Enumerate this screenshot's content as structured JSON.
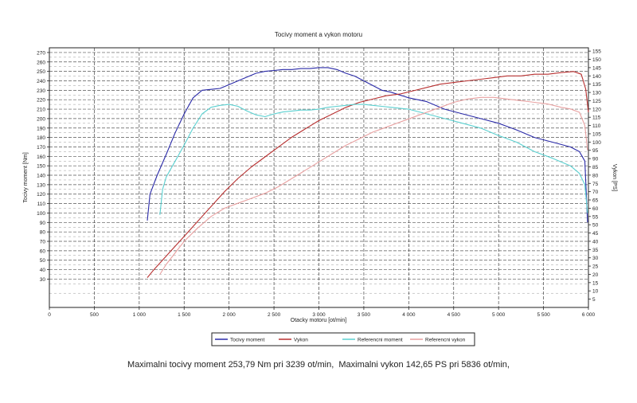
{
  "chart_data": {
    "type": "line",
    "title": "Tocivy moment a vykon motoru",
    "xlabel": "Otacky motoru [ot/min]",
    "ylabel_left": "Tocivy moment [Nm]",
    "ylabel_right": "Vykon [PS]",
    "xlim": [
      0,
      6000
    ],
    "ylim_left": [
      0,
      275
    ],
    "ylim_right": [
      0,
      157
    ],
    "x_ticks": [
      0,
      500,
      1000,
      1500,
      2000,
      2500,
      3000,
      3500,
      4000,
      4500,
      5000,
      5500,
      6000
    ],
    "x_tick_labels": [
      "0",
      "500",
      "1 000",
      "1 500",
      "2 000",
      "2 500",
      "3 000",
      "3 500",
      "4 000",
      "4 500",
      "5 000",
      "5 500",
      "6 000"
    ],
    "y_left_ticks": [
      30,
      40,
      50,
      60,
      70,
      80,
      90,
      100,
      110,
      120,
      130,
      140,
      150,
      160,
      170,
      180,
      190,
      200,
      210,
      220,
      230,
      240,
      250,
      260,
      270
    ],
    "y_right_ticks": [
      5,
      10,
      15,
      20,
      25,
      30,
      35,
      40,
      45,
      50,
      55,
      60,
      65,
      70,
      75,
      80,
      85,
      90,
      95,
      100,
      105,
      110,
      115,
      120,
      125,
      130,
      135,
      140,
      145,
      150,
      155
    ],
    "grid": true,
    "legend_position": "bottom",
    "series": [
      {
        "name": "Tocivy moment",
        "axis": "left",
        "color": "#2a2aa8",
        "x": [
          1090,
          1120,
          1200,
          1300,
          1400,
          1500,
          1600,
          1700,
          1800,
          1900,
          2000,
          2100,
          2200,
          2300,
          2400,
          2500,
          2600,
          2700,
          2800,
          2900,
          3000,
          3100,
          3200,
          3300,
          3400,
          3500,
          3600,
          3700,
          3800,
          3900,
          4000,
          4200,
          4400,
          4600,
          4800,
          5000,
          5200,
          5400,
          5600,
          5800,
          5900,
          5960,
          5990
        ],
        "y": [
          92,
          120,
          140,
          162,
          185,
          205,
          222,
          230,
          231,
          232,
          236,
          240,
          244,
          248,
          250,
          251,
          252,
          252,
          253,
          253,
          254,
          254,
          252,
          248,
          245,
          240,
          235,
          230,
          228,
          225,
          222,
          218,
          210,
          205,
          200,
          195,
          188,
          180,
          175,
          170,
          165,
          155,
          90
        ]
      },
      {
        "name": "Vykon",
        "axis": "right",
        "color": "#b83030",
        "x": [
          1090,
          1150,
          1250,
          1350,
          1500,
          1650,
          1800,
          1950,
          2100,
          2250,
          2400,
          2550,
          2700,
          2850,
          3000,
          3150,
          3300,
          3450,
          3600,
          3750,
          3900,
          4050,
          4200,
          4350,
          4500,
          4650,
          4800,
          4950,
          5100,
          5250,
          5400,
          5550,
          5700,
          5836,
          5920,
          5970,
          6000
        ],
        "y": [
          18,
          22,
          28,
          34,
          43,
          52,
          61,
          70,
          78,
          85,
          91,
          97,
          103,
          108,
          113,
          117,
          121,
          124,
          126,
          128,
          129,
          131,
          133,
          135,
          136,
          137,
          138,
          139,
          140,
          140,
          141,
          141,
          142,
          142.65,
          141,
          132,
          118
        ]
      },
      {
        "name": "Referencni moment",
        "axis": "left",
        "color": "#5ad0d0",
        "x": [
          1230,
          1260,
          1300,
          1400,
          1500,
          1600,
          1700,
          1800,
          1900,
          2000,
          2100,
          2200,
          2300,
          2400,
          2500,
          2600,
          2700,
          2800,
          2900,
          3000,
          3100,
          3200,
          3300,
          3400,
          3500,
          3600,
          3700,
          3800,
          3900,
          4000,
          4200,
          4400,
          4600,
          4800,
          5000,
          5200,
          5400,
          5600,
          5800,
          5900,
          5960,
          5990
        ],
        "y": [
          98,
          125,
          138,
          155,
          172,
          190,
          205,
          212,
          214,
          215,
          213,
          208,
          204,
          202,
          205,
          207,
          208,
          209,
          209,
          210,
          212,
          213,
          214,
          215,
          215,
          214,
          213,
          212,
          211,
          210,
          205,
          200,
          195,
          190,
          182,
          175,
          165,
          158,
          150,
          142,
          130,
          100
        ]
      },
      {
        "name": "Referencni vykon",
        "axis": "right",
        "color": "#e8a0a0",
        "x": [
          1230,
          1300,
          1400,
          1500,
          1650,
          1800,
          1950,
          2100,
          2250,
          2400,
          2550,
          2700,
          2850,
          3000,
          3150,
          3300,
          3450,
          3600,
          3750,
          3900,
          4050,
          4200,
          4350,
          4500,
          4650,
          4800,
          4950,
          5100,
          5250,
          5400,
          5550,
          5700,
          5800,
          5900,
          5960,
          5990
        ],
        "y": [
          20,
          26,
          33,
          40,
          48,
          55,
          60,
          63,
          66,
          69,
          73,
          78,
          83,
          88,
          93,
          98,
          102,
          106,
          109,
          112,
          115,
          118,
          121,
          124,
          126,
          127,
          127,
          126,
          125,
          124,
          123,
          121,
          120,
          118,
          110,
          95
        ]
      }
    ]
  },
  "summary_text": "Maximalni tocivy moment 253,79 Nm pri 3239 ot/min,  Maximalni vykon 142,65 PS pri 5836 ot/min,"
}
